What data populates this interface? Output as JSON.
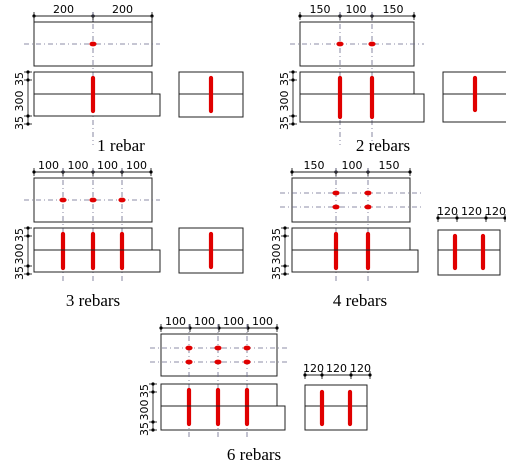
{
  "panels": [
    {
      "caption": "1  rebar",
      "plan_dims": [
        "200",
        "200"
      ],
      "side_dims": [
        "35",
        "300",
        "35"
      ],
      "end_dims": []
    },
    {
      "caption": "2  rebars",
      "plan_dims": [
        "150",
        "100",
        "150"
      ],
      "side_dims": [
        "35",
        "300",
        "35"
      ],
      "end_dims": []
    },
    {
      "caption": "3  rebars",
      "plan_dims": [
        "100",
        "100",
        "100",
        "100"
      ],
      "side_dims": [
        "35",
        "300",
        "35"
      ],
      "end_dims": []
    },
    {
      "caption": "4  rebars",
      "plan_dims": [
        "150",
        "100",
        "150"
      ],
      "side_dims": [
        "35",
        "300",
        "35"
      ],
      "end_dims": [
        "120",
        "120",
        "120"
      ]
    },
    {
      "caption": "6  rebars",
      "plan_dims": [
        "100",
        "100",
        "100",
        "100"
      ],
      "side_dims": [
        "35",
        "300",
        "35"
      ],
      "end_dims": [
        "120",
        "120",
        "120"
      ]
    }
  ],
  "colors": {
    "rebar": "#e00000",
    "line": "#222222",
    "centerline": "#6a6a8a"
  }
}
